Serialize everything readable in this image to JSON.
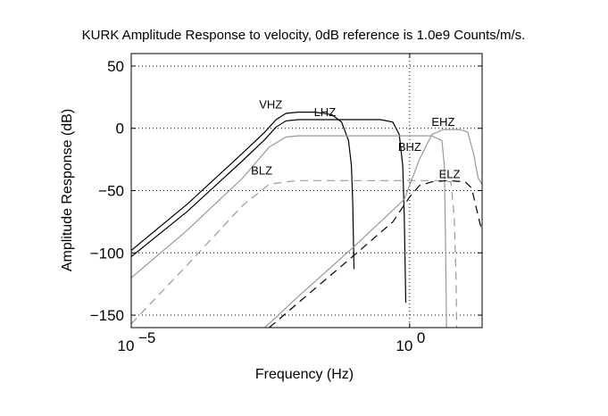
{
  "chart_data": {
    "type": "line",
    "title": "KURK Amplitude Response to velocity, 0dB reference is 1.0e9 Counts/m/s.",
    "xlabel": "Frequency (Hz)",
    "ylabel": "Amplitude Response (dB)",
    "xscale": "log",
    "xlim": [
      1e-05,
      20
    ],
    "ylim": [
      -160,
      60
    ],
    "x_ticks": [
      {
        "value": 1e-05,
        "base": "10",
        "exp": "−5"
      },
      {
        "value": 1,
        "base": "10",
        "exp": "0"
      }
    ],
    "y_ticks": [
      {
        "value": 50,
        "label": "50"
      },
      {
        "value": 0,
        "label": "0"
      },
      {
        "value": -50,
        "label": "−50"
      },
      {
        "value": -100,
        "label": "−100"
      },
      {
        "value": -150,
        "label": "−150"
      }
    ],
    "grid": {
      "y_dotted": [
        50,
        0,
        -50,
        -100,
        -150
      ],
      "x_dotted": [
        1
      ]
    },
    "series": [
      {
        "name": "VHZ",
        "color": "#000000",
        "dash": "",
        "label_at": [
          0.0032,
          16
        ],
        "points": [
          [
            1e-05,
            -98
          ],
          [
            0.0001,
            -61
          ],
          [
            0.001,
            -20
          ],
          [
            0.0025,
            -3
          ],
          [
            0.004,
            7
          ],
          [
            0.006,
            12
          ],
          [
            0.01,
            13
          ],
          [
            0.02,
            13
          ],
          [
            0.04,
            11
          ],
          [
            0.06,
            5
          ],
          [
            0.08,
            -10
          ],
          [
            0.09,
            -30
          ],
          [
            0.095,
            -60
          ],
          [
            0.1,
            -113
          ]
        ]
      },
      {
        "name": "LHZ",
        "color": "#000000",
        "dash": "",
        "label_at": [
          0.03,
          10
        ],
        "points": [
          [
            1e-05,
            -103
          ],
          [
            0.0001,
            -67
          ],
          [
            0.001,
            -26
          ],
          [
            0.0025,
            -9
          ],
          [
            0.004,
            1
          ],
          [
            0.006,
            6
          ],
          [
            0.01,
            7
          ],
          [
            0.1,
            7
          ],
          [
            0.3,
            7
          ],
          [
            0.5,
            5
          ],
          [
            0.65,
            -5
          ],
          [
            0.75,
            -30
          ],
          [
            0.8,
            -70
          ],
          [
            0.85,
            -140
          ]
        ]
      },
      {
        "name": "EHZ",
        "color": "#999999",
        "dash": "",
        "label_at": [
          4,
          2
        ],
        "points": [
          [
            0.0025,
            -160
          ],
          [
            0.01,
            -135
          ],
          [
            0.1,
            -95
          ],
          [
            0.8,
            -57
          ],
          [
            1.5,
            -25
          ],
          [
            2.5,
            -5
          ],
          [
            4,
            -1
          ],
          [
            8,
            -1
          ],
          [
            11,
            -3
          ],
          [
            14,
            -20
          ],
          [
            17,
            -40
          ],
          [
            20,
            -45
          ]
        ]
      },
      {
        "name": "BHZ",
        "color": "#999999",
        "dash": "",
        "label_at": [
          1,
          -18
        ],
        "points": [
          [
            1e-05,
            -120
          ],
          [
            0.0001,
            -82
          ],
          [
            0.001,
            -40
          ],
          [
            0.003,
            -15
          ],
          [
            0.006,
            -7
          ],
          [
            0.01,
            -6
          ],
          [
            0.1,
            -6
          ],
          [
            1,
            -6
          ],
          [
            2.5,
            -6
          ],
          [
            3.8,
            -10
          ],
          [
            4.2,
            -30
          ],
          [
            4.4,
            -90
          ],
          [
            4.6,
            -165
          ]
        ]
      },
      {
        "name": "BLZ",
        "color": "#999999",
        "dash": "9,6",
        "label_at": [
          0.0022,
          -37
        ],
        "points": [
          [
            1e-05,
            -157
          ],
          [
            0.0001,
            -110
          ],
          [
            0.001,
            -62
          ],
          [
            0.003,
            -45
          ],
          [
            0.006,
            -43
          ],
          [
            0.01,
            -42
          ],
          [
            0.1,
            -42
          ],
          [
            1,
            -42
          ],
          [
            3.5,
            -42
          ],
          [
            5.5,
            -43
          ],
          [
            6.3,
            -70
          ],
          [
            6.8,
            -120
          ],
          [
            7,
            -165
          ]
        ]
      },
      {
        "name": "ELZ",
        "color": "#000000",
        "dash": "9,6",
        "label_at": [
          5.2,
          -40
        ],
        "points": [
          [
            0.003,
            -160
          ],
          [
            0.01,
            -140
          ],
          [
            0.1,
            -102
          ],
          [
            0.5,
            -75
          ],
          [
            1,
            -55
          ],
          [
            1.5,
            -46
          ],
          [
            2.5,
            -43
          ],
          [
            5,
            -42
          ],
          [
            10,
            -43
          ],
          [
            13,
            -48
          ],
          [
            15,
            -60
          ],
          [
            18,
            -75
          ],
          [
            20,
            -82
          ]
        ]
      }
    ]
  }
}
